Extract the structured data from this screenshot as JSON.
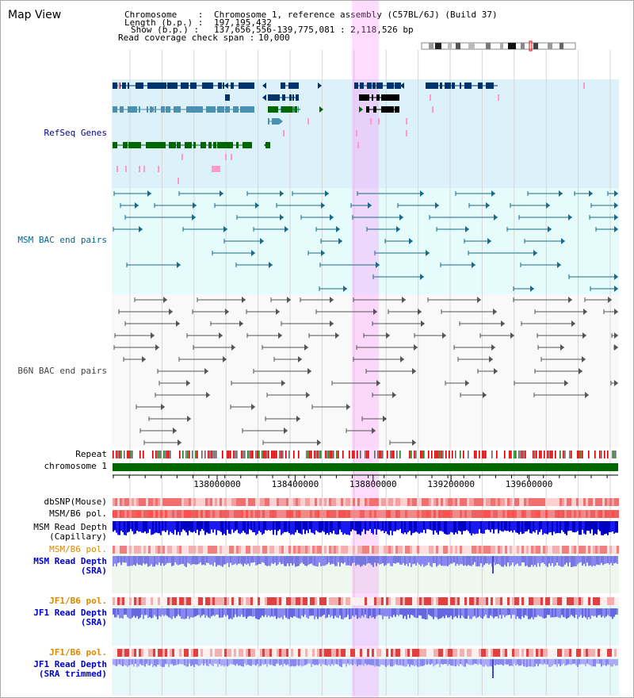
{
  "page": {
    "title": "Map View"
  },
  "header": {
    "chromosome_label": "Chromosome    :",
    "chromosome_value": "Chromosome 1, reference assembly (C57BL/6J) (Build 37)",
    "length_label": "Length (b.p.) :",
    "length_value": "197,195,432",
    "show_label": "Show (b.p.) :",
    "show_value": "137,656,556-139,775,081 : 2,118,526 bp",
    "coverage_label": "Read coverage check span :",
    "coverage_value": "10,000"
  },
  "tracks": {
    "refseq": {
      "label": "RefSeq Genes",
      "color": "#000099"
    },
    "msm_bac": {
      "label": "MSM BAC end pairs",
      "color": "#006688"
    },
    "b6n_bac": {
      "label": "B6N BAC end pairs",
      "color": "#444444"
    },
    "repeat": {
      "label": "Repeat"
    },
    "chromosome": {
      "label": "chromosome 1"
    },
    "dbsnp": {
      "label": "dbSNP(Mouse)"
    },
    "msm_b6_pol": {
      "label": "MSM/B6 pol."
    },
    "msm_read_depth_cap": {
      "label": "MSM Read Depth\n(Capillary)"
    },
    "msm_b6_pol2": {
      "label": "MSM/B6 pol.",
      "color": "#DD8800"
    },
    "msm_read_depth_sra": {
      "label": "MSM Read Depth\n(SRA)",
      "color": "#0000CC"
    },
    "jf1_b6_pol": {
      "label": "JF1/B6 pol.",
      "color": "#DD8800"
    },
    "jf1_read_depth_sra": {
      "label": "JF1 Read Depth\n(SRA)",
      "color": "#0000CC"
    },
    "jf1_b6_pol2": {
      "label": "JF1/B6 pol.",
      "color": "#DD8800"
    },
    "jf1_read_depth_trim": {
      "label": "JF1 Read Depth\n(SRA trimmed)",
      "color": "#0000CC"
    }
  },
  "axis": {
    "start_bp": 137656556,
    "end_bp": 139775081,
    "ticks": [
      "138000000",
      "138400000",
      "138800000",
      "139200000",
      "139600000"
    ]
  },
  "highlight": {
    "start_bp": 138660000,
    "end_bp": 138772000,
    "color": "#FF88FF"
  },
  "colors": {
    "refseq_bg": "#DDF1FA",
    "msm_bg": "#E6FBFB",
    "b6n_bg": "#F9F9F9",
    "chromosome_bar": "#006600",
    "dark_gene": "#00336A",
    "mid_gene": "#4A90B0",
    "green_gene": "#006600"
  }
}
